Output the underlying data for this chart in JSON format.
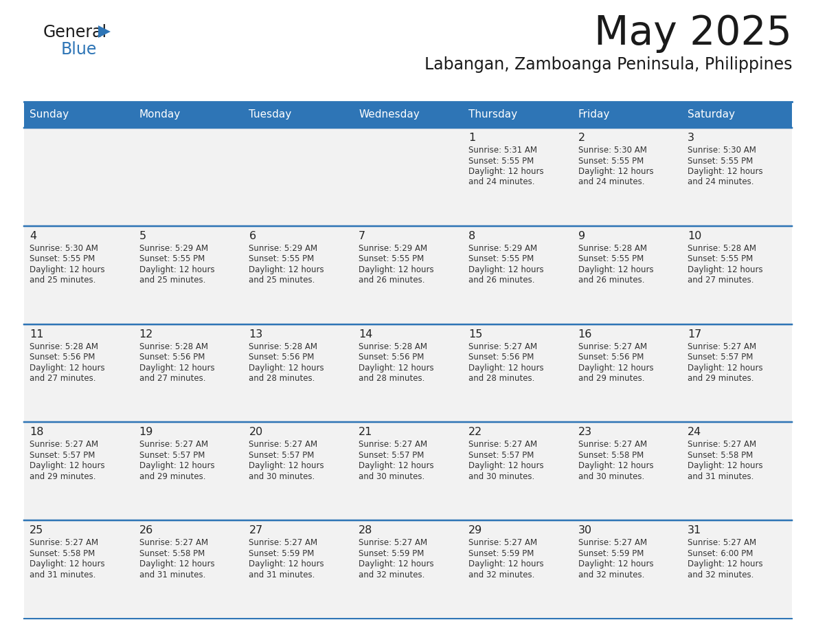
{
  "title": "May 2025",
  "subtitle": "Labangan, Zamboanga Peninsula, Philippines",
  "days_of_week": [
    "Sunday",
    "Monday",
    "Tuesday",
    "Wednesday",
    "Thursday",
    "Friday",
    "Saturday"
  ],
  "header_bg": "#2E75B6",
  "header_text": "#FFFFFF",
  "cell_bg": "#F2F2F2",
  "cell_bg_white": "#FFFFFF",
  "border_color": "#2E75B6",
  "text_color": "#333333",
  "day_number_color": "#222222",
  "logo_black": "#1a1a1a",
  "logo_blue": "#2E75B6",
  "weeks": [
    [
      {
        "day": "",
        "sunrise": "",
        "sunset": "",
        "daylight": ""
      },
      {
        "day": "",
        "sunrise": "",
        "sunset": "",
        "daylight": ""
      },
      {
        "day": "",
        "sunrise": "",
        "sunset": "",
        "daylight": ""
      },
      {
        "day": "",
        "sunrise": "",
        "sunset": "",
        "daylight": ""
      },
      {
        "day": "1",
        "sunrise": "Sunrise: 5:31 AM",
        "sunset": "Sunset: 5:55 PM",
        "daylight": "Daylight: 12 hours\nand 24 minutes."
      },
      {
        "day": "2",
        "sunrise": "Sunrise: 5:30 AM",
        "sunset": "Sunset: 5:55 PM",
        "daylight": "Daylight: 12 hours\nand 24 minutes."
      },
      {
        "day": "3",
        "sunrise": "Sunrise: 5:30 AM",
        "sunset": "Sunset: 5:55 PM",
        "daylight": "Daylight: 12 hours\nand 24 minutes."
      }
    ],
    [
      {
        "day": "4",
        "sunrise": "Sunrise: 5:30 AM",
        "sunset": "Sunset: 5:55 PM",
        "daylight": "Daylight: 12 hours\nand 25 minutes."
      },
      {
        "day": "5",
        "sunrise": "Sunrise: 5:29 AM",
        "sunset": "Sunset: 5:55 PM",
        "daylight": "Daylight: 12 hours\nand 25 minutes."
      },
      {
        "day": "6",
        "sunrise": "Sunrise: 5:29 AM",
        "sunset": "Sunset: 5:55 PM",
        "daylight": "Daylight: 12 hours\nand 25 minutes."
      },
      {
        "day": "7",
        "sunrise": "Sunrise: 5:29 AM",
        "sunset": "Sunset: 5:55 PM",
        "daylight": "Daylight: 12 hours\nand 26 minutes."
      },
      {
        "day": "8",
        "sunrise": "Sunrise: 5:29 AM",
        "sunset": "Sunset: 5:55 PM",
        "daylight": "Daylight: 12 hours\nand 26 minutes."
      },
      {
        "day": "9",
        "sunrise": "Sunrise: 5:28 AM",
        "sunset": "Sunset: 5:55 PM",
        "daylight": "Daylight: 12 hours\nand 26 minutes."
      },
      {
        "day": "10",
        "sunrise": "Sunrise: 5:28 AM",
        "sunset": "Sunset: 5:55 PM",
        "daylight": "Daylight: 12 hours\nand 27 minutes."
      }
    ],
    [
      {
        "day": "11",
        "sunrise": "Sunrise: 5:28 AM",
        "sunset": "Sunset: 5:56 PM",
        "daylight": "Daylight: 12 hours\nand 27 minutes."
      },
      {
        "day": "12",
        "sunrise": "Sunrise: 5:28 AM",
        "sunset": "Sunset: 5:56 PM",
        "daylight": "Daylight: 12 hours\nand 27 minutes."
      },
      {
        "day": "13",
        "sunrise": "Sunrise: 5:28 AM",
        "sunset": "Sunset: 5:56 PM",
        "daylight": "Daylight: 12 hours\nand 28 minutes."
      },
      {
        "day": "14",
        "sunrise": "Sunrise: 5:28 AM",
        "sunset": "Sunset: 5:56 PM",
        "daylight": "Daylight: 12 hours\nand 28 minutes."
      },
      {
        "day": "15",
        "sunrise": "Sunrise: 5:27 AM",
        "sunset": "Sunset: 5:56 PM",
        "daylight": "Daylight: 12 hours\nand 28 minutes."
      },
      {
        "day": "16",
        "sunrise": "Sunrise: 5:27 AM",
        "sunset": "Sunset: 5:56 PM",
        "daylight": "Daylight: 12 hours\nand 29 minutes."
      },
      {
        "day": "17",
        "sunrise": "Sunrise: 5:27 AM",
        "sunset": "Sunset: 5:57 PM",
        "daylight": "Daylight: 12 hours\nand 29 minutes."
      }
    ],
    [
      {
        "day": "18",
        "sunrise": "Sunrise: 5:27 AM",
        "sunset": "Sunset: 5:57 PM",
        "daylight": "Daylight: 12 hours\nand 29 minutes."
      },
      {
        "day": "19",
        "sunrise": "Sunrise: 5:27 AM",
        "sunset": "Sunset: 5:57 PM",
        "daylight": "Daylight: 12 hours\nand 29 minutes."
      },
      {
        "day": "20",
        "sunrise": "Sunrise: 5:27 AM",
        "sunset": "Sunset: 5:57 PM",
        "daylight": "Daylight: 12 hours\nand 30 minutes."
      },
      {
        "day": "21",
        "sunrise": "Sunrise: 5:27 AM",
        "sunset": "Sunset: 5:57 PM",
        "daylight": "Daylight: 12 hours\nand 30 minutes."
      },
      {
        "day": "22",
        "sunrise": "Sunrise: 5:27 AM",
        "sunset": "Sunset: 5:57 PM",
        "daylight": "Daylight: 12 hours\nand 30 minutes."
      },
      {
        "day": "23",
        "sunrise": "Sunrise: 5:27 AM",
        "sunset": "Sunset: 5:58 PM",
        "daylight": "Daylight: 12 hours\nand 30 minutes."
      },
      {
        "day": "24",
        "sunrise": "Sunrise: 5:27 AM",
        "sunset": "Sunset: 5:58 PM",
        "daylight": "Daylight: 12 hours\nand 31 minutes."
      }
    ],
    [
      {
        "day": "25",
        "sunrise": "Sunrise: 5:27 AM",
        "sunset": "Sunset: 5:58 PM",
        "daylight": "Daylight: 12 hours\nand 31 minutes."
      },
      {
        "day": "26",
        "sunrise": "Sunrise: 5:27 AM",
        "sunset": "Sunset: 5:58 PM",
        "daylight": "Daylight: 12 hours\nand 31 minutes."
      },
      {
        "day": "27",
        "sunrise": "Sunrise: 5:27 AM",
        "sunset": "Sunset: 5:59 PM",
        "daylight": "Daylight: 12 hours\nand 31 minutes."
      },
      {
        "day": "28",
        "sunrise": "Sunrise: 5:27 AM",
        "sunset": "Sunset: 5:59 PM",
        "daylight": "Daylight: 12 hours\nand 32 minutes."
      },
      {
        "day": "29",
        "sunrise": "Sunrise: 5:27 AM",
        "sunset": "Sunset: 5:59 PM",
        "daylight": "Daylight: 12 hours\nand 32 minutes."
      },
      {
        "day": "30",
        "sunrise": "Sunrise: 5:27 AM",
        "sunset": "Sunset: 5:59 PM",
        "daylight": "Daylight: 12 hours\nand 32 minutes."
      },
      {
        "day": "31",
        "sunrise": "Sunrise: 5:27 AM",
        "sunset": "Sunset: 6:00 PM",
        "daylight": "Daylight: 12 hours\nand 32 minutes."
      }
    ]
  ]
}
